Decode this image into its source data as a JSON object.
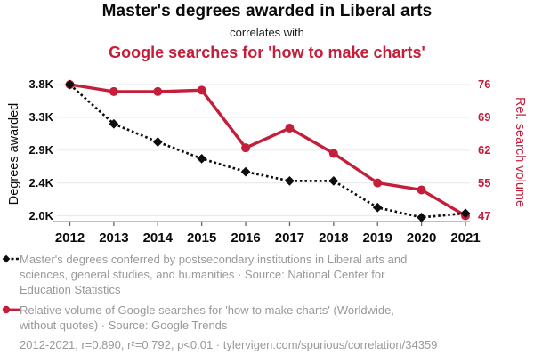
{
  "header": {
    "title": "Master's degrees awarded in Liberal arts",
    "subtitle": "correlates with",
    "title2": "Google searches for 'how to make charts'"
  },
  "chart_data": {
    "type": "line",
    "x": [
      2012,
      2013,
      2014,
      2015,
      2016,
      2017,
      2018,
      2019,
      2020,
      2021
    ],
    "series": [
      {
        "name": "Master's degrees awarded in Liberal arts",
        "axis": "left",
        "values": [
          3800,
          3220,
          3000,
          2770,
          2570,
          2430,
          2430,
          2100,
          1980,
          2030
        ],
        "unit": "degrees awarded",
        "color": "#0d0d0d",
        "line_style": "dotted",
        "marker": "diamond"
      },
      {
        "name": "Google searches for 'how to make charts'",
        "axis": "right",
        "values": [
          76,
          74.5,
          74.5,
          74.8,
          62.5,
          66.7,
          61.3,
          55,
          53.3,
          47
        ],
        "unit": "relative search volume",
        "color": "#c41e3a",
        "line_style": "solid",
        "marker": "circle"
      }
    ],
    "left_axis": {
      "label": "Degrees awarded",
      "tick_labels": [
        "3.8K",
        "3.3K",
        "2.9K",
        "2.4K",
        "2.0K"
      ],
      "tick_values": [
        3800,
        3300,
        2900,
        2400,
        2000
      ]
    },
    "right_axis": {
      "label": "Rel. search volume",
      "tick_labels": [
        "76",
        "69",
        "62",
        "55",
        "47"
      ],
      "tick_values": [
        76,
        69,
        62,
        55,
        47
      ]
    },
    "x_axis": {
      "tick_labels": [
        "2012",
        "2013",
        "2014",
        "2015",
        "2016",
        "2017",
        "2018",
        "2019",
        "2020",
        "2021"
      ]
    },
    "grid": "horizontal",
    "legend_position": "bottom"
  },
  "legend": {
    "items": [
      {
        "series": "degrees-awarded",
        "marker": "black-diamond-dotted",
        "lines": [
          "Master's degrees conferred by postsecondary institutions in Liberal arts and",
          "sciences, general studies, and humanities · Source: National Center for",
          "Education Statistics"
        ]
      },
      {
        "series": "search-volume",
        "marker": "red-circle-solid",
        "lines": [
          "Relative volume of Google searches for 'how to make charts' (Worldwide,",
          "without quotes) · Source: Google Trends"
        ]
      }
    ]
  },
  "footer": {
    "stats": "2012-2021, r=0.890, r²=0.792, p<0.01 · tylervigen.com/spurious/correlation/34359"
  },
  "colors": {
    "accent_red": "#c41e3a",
    "series_black": "#0d0d0d",
    "muted_text": "#999999",
    "grid_line": "#ebebeb",
    "axis_line": "#999999"
  }
}
